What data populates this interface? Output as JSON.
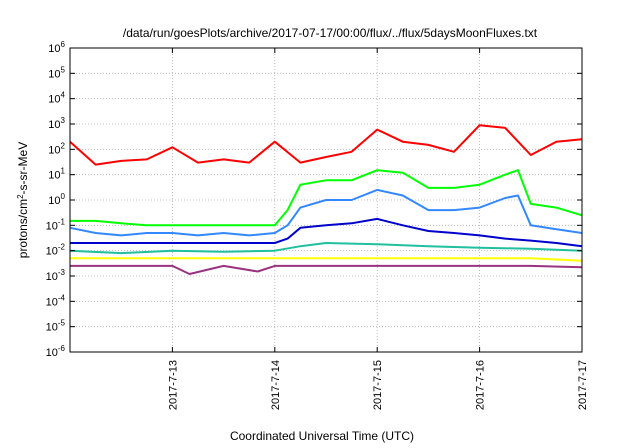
{
  "chart_data": {
    "type": "line",
    "title": "/data/run/goesPlots/archive/2017-07-17/00:00/flux/../flux/5daysMoonFluxes.txt",
    "xlabel": "Coordinated Universal Time (UTC)",
    "ylabel_parts": {
      "base": "protons/cm",
      "sup": "2",
      "rest": "-s-sr-MeV"
    },
    "yscale": "log",
    "ylim": [
      -6,
      6
    ],
    "y_tick_labels": [
      {
        "exp": -6,
        "base": "10",
        "sup": "-6"
      },
      {
        "exp": -5,
        "base": "10",
        "sup": "-5"
      },
      {
        "exp": -4,
        "base": "10",
        "sup": "-4"
      },
      {
        "exp": -3,
        "base": "10",
        "sup": "-3"
      },
      {
        "exp": -2,
        "base": "10",
        "sup": "-2"
      },
      {
        "exp": -1,
        "base": "10",
        "sup": "-1"
      },
      {
        "exp": 0,
        "base": "10",
        "sup": "0"
      },
      {
        "exp": 1,
        "base": "10",
        "sup": "1"
      },
      {
        "exp": 2,
        "base": "10",
        "sup": "2"
      },
      {
        "exp": 3,
        "base": "10",
        "sup": "3"
      },
      {
        "exp": 4,
        "base": "10",
        "sup": "4"
      },
      {
        "exp": 5,
        "base": "10",
        "sup": "5"
      },
      {
        "exp": 6,
        "base": "10",
        "sup": "6"
      }
    ],
    "xlim": [
      "2017-07-12T00:00",
      "2017-07-17T00:00"
    ],
    "x_ticks": [
      "2017-07-13T00:00",
      "2017-07-14T00:00",
      "2017-07-15T00:00",
      "2017-07-16T00:00",
      "2017-07-17T00:00"
    ],
    "x_tick_labels": [
      "2017-7-13",
      "2017-7-14",
      "2017-7-15",
      "2017-7-16",
      "2017-7-17"
    ],
    "grid": true,
    "series": [
      {
        "color": "#ff0000",
        "x": [
          "2017-07-12T00:00",
          "2017-07-12T06:00",
          "2017-07-12T12:00",
          "2017-07-12T18:00",
          "2017-07-13T00:00",
          "2017-07-13T06:00",
          "2017-07-13T12:00",
          "2017-07-13T18:00",
          "2017-07-14T00:00",
          "2017-07-14T06:00",
          "2017-07-14T12:00",
          "2017-07-14T18:00",
          "2017-07-15T00:00",
          "2017-07-15T06:00",
          "2017-07-15T12:00",
          "2017-07-15T18:00",
          "2017-07-16T00:00",
          "2017-07-16T06:00",
          "2017-07-16T12:00",
          "2017-07-16T18:00",
          "2017-07-17T00:00"
        ],
        "y": [
          200,
          25,
          35,
          40,
          120,
          30,
          40,
          30,
          200,
          30,
          50,
          80,
          600,
          200,
          150,
          80,
          900,
          700,
          60,
          200,
          250
        ]
      },
      {
        "color": "#00ff00",
        "x": [
          "2017-07-12T00:00",
          "2017-07-12T06:00",
          "2017-07-12T12:00",
          "2017-07-12T18:00",
          "2017-07-13T00:00",
          "2017-07-13T06:00",
          "2017-07-13T12:00",
          "2017-07-13T18:00",
          "2017-07-14T00:00",
          "2017-07-14T03:00",
          "2017-07-14T06:00",
          "2017-07-14T12:00",
          "2017-07-14T18:00",
          "2017-07-15T00:00",
          "2017-07-15T06:00",
          "2017-07-15T12:00",
          "2017-07-15T18:00",
          "2017-07-16T00:00",
          "2017-07-16T06:00",
          "2017-07-16T09:00",
          "2017-07-16T12:00",
          "2017-07-16T18:00",
          "2017-07-17T00:00"
        ],
        "y": [
          0.15,
          0.15,
          0.12,
          0.1,
          0.1,
          0.1,
          0.1,
          0.1,
          0.1,
          0.4,
          4,
          6,
          6,
          15,
          12,
          3,
          3,
          4,
          10,
          15,
          0.7,
          0.5,
          0.25
        ]
      },
      {
        "color": "#3388ff",
        "x": [
          "2017-07-12T00:00",
          "2017-07-12T06:00",
          "2017-07-12T12:00",
          "2017-07-12T18:00",
          "2017-07-13T00:00",
          "2017-07-13T06:00",
          "2017-07-13T12:00",
          "2017-07-13T18:00",
          "2017-07-14T00:00",
          "2017-07-14T03:00",
          "2017-07-14T06:00",
          "2017-07-14T12:00",
          "2017-07-14T18:00",
          "2017-07-15T00:00",
          "2017-07-15T06:00",
          "2017-07-15T12:00",
          "2017-07-15T18:00",
          "2017-07-16T00:00",
          "2017-07-16T06:00",
          "2017-07-16T09:00",
          "2017-07-16T12:00",
          "2017-07-16T18:00",
          "2017-07-17T00:00"
        ],
        "y": [
          0.08,
          0.05,
          0.04,
          0.05,
          0.05,
          0.04,
          0.05,
          0.04,
          0.05,
          0.1,
          0.5,
          1,
          1,
          2.5,
          1.5,
          0.4,
          0.4,
          0.5,
          1.2,
          1.5,
          0.1,
          0.07,
          0.05
        ]
      },
      {
        "color": "#0000cc",
        "x": [
          "2017-07-12T00:00",
          "2017-07-12T06:00",
          "2017-07-12T12:00",
          "2017-07-12T18:00",
          "2017-07-13T00:00",
          "2017-07-13T06:00",
          "2017-07-13T12:00",
          "2017-07-13T18:00",
          "2017-07-14T00:00",
          "2017-07-14T03:00",
          "2017-07-14T06:00",
          "2017-07-14T12:00",
          "2017-07-14T18:00",
          "2017-07-15T00:00",
          "2017-07-15T06:00",
          "2017-07-15T12:00",
          "2017-07-15T18:00",
          "2017-07-16T00:00",
          "2017-07-16T06:00",
          "2017-07-16T12:00",
          "2017-07-16T18:00",
          "2017-07-17T00:00"
        ],
        "y": [
          0.02,
          0.02,
          0.02,
          0.02,
          0.02,
          0.02,
          0.02,
          0.02,
          0.02,
          0.03,
          0.08,
          0.1,
          0.12,
          0.18,
          0.1,
          0.06,
          0.05,
          0.04,
          0.03,
          0.025,
          0.02,
          0.015
        ]
      },
      {
        "color": "#1fbfa0",
        "x": [
          "2017-07-12T00:00",
          "2017-07-12T12:00",
          "2017-07-13T00:00",
          "2017-07-13T12:00",
          "2017-07-14T00:00",
          "2017-07-14T06:00",
          "2017-07-14T12:00",
          "2017-07-15T00:00",
          "2017-07-15T12:00",
          "2017-07-16T00:00",
          "2017-07-16T12:00",
          "2017-07-17T00:00"
        ],
        "y": [
          0.01,
          0.008,
          0.01,
          0.009,
          0.01,
          0.015,
          0.02,
          0.018,
          0.015,
          0.013,
          0.012,
          0.01
        ]
      },
      {
        "color": "#ffff00",
        "x": [
          "2017-07-12T00:00",
          "2017-07-12T12:00",
          "2017-07-13T00:00",
          "2017-07-13T12:00",
          "2017-07-14T00:00",
          "2017-07-14T12:00",
          "2017-07-15T00:00",
          "2017-07-15T12:00",
          "2017-07-16T00:00",
          "2017-07-16T12:00",
          "2017-07-17T00:00"
        ],
        "y": [
          0.005,
          0.005,
          0.005,
          0.005,
          0.005,
          0.005,
          0.005,
          0.005,
          0.005,
          0.005,
          0.004
        ]
      },
      {
        "color": "#993380",
        "x": [
          "2017-07-12T00:00",
          "2017-07-12T12:00",
          "2017-07-13T00:00",
          "2017-07-13T04:00",
          "2017-07-13T12:00",
          "2017-07-13T20:00",
          "2017-07-14T00:00",
          "2017-07-14T12:00",
          "2017-07-15T00:00",
          "2017-07-15T12:00",
          "2017-07-16T00:00",
          "2017-07-16T12:00",
          "2017-07-17T00:00"
        ],
        "y": [
          0.0025,
          0.0025,
          0.0025,
          0.0012,
          0.0025,
          0.0015,
          0.0025,
          0.0025,
          0.0025,
          0.0025,
          0.0025,
          0.0025,
          0.0022
        ]
      }
    ]
  }
}
